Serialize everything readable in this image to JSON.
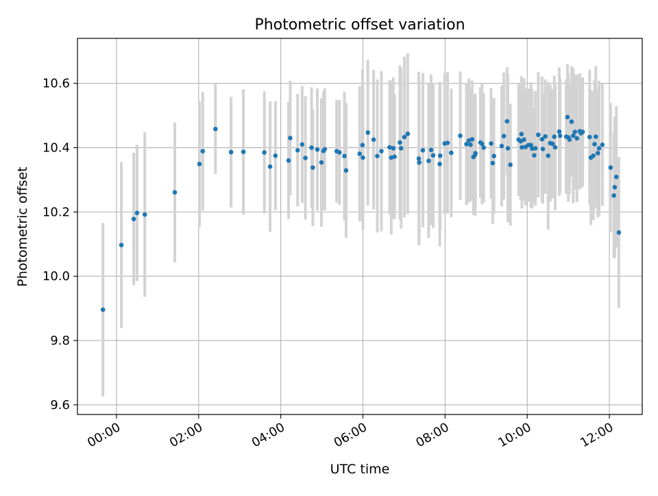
{
  "chart_data": {
    "type": "scatter",
    "title": "Photometric offset variation",
    "xlabel": "UTC time",
    "ylabel": "Photometric offset",
    "x_unit": "hours (UTC)",
    "xlim": [
      -0.95,
      12.8
    ],
    "ylim": [
      9.57,
      10.74
    ],
    "grid": true,
    "x_ticks": [
      0,
      2,
      4,
      6,
      8,
      10,
      12
    ],
    "x_tick_labels": [
      "00:00",
      "02:00",
      "04:00",
      "06:00",
      "08:00",
      "10:00",
      "12:00"
    ],
    "y_ticks": [
      9.6,
      9.8,
      10.0,
      10.2,
      10.4,
      10.6
    ],
    "y_tick_labels": [
      "9.6",
      "9.8",
      "10.0",
      "10.2",
      "10.4",
      "10.6"
    ],
    "colors": {
      "point": "#1f77b4",
      "errorbar": "#d3d3d3",
      "grid": "#b0b0b0",
      "axes": "#000000"
    },
    "series": [
      {
        "x": [
          -0.33,
          0.12,
          0.42,
          0.5,
          0.69,
          1.42,
          2.02,
          2.1,
          2.41,
          2.79,
          3.09,
          3.6,
          3.74,
          3.87,
          4.19,
          4.23,
          4.41,
          4.52,
          4.6,
          4.75,
          4.78,
          4.89,
          4.99,
          5.04,
          5.07,
          5.36,
          5.43,
          5.55,
          5.59,
          5.92,
          5.99,
          6.0,
          6.12,
          6.26,
          6.35,
          6.45,
          6.65,
          6.69,
          6.74,
          6.77,
          6.9,
          6.93,
          7.01,
          7.09,
          7.36,
          7.37,
          7.46,
          7.6,
          7.66,
          7.71,
          7.87,
          7.88,
          7.99,
          8.06,
          8.15,
          8.37,
          8.52,
          8.58,
          8.62,
          8.66,
          8.69,
          8.73,
          8.74,
          8.86,
          8.9,
          8.94,
          9.12,
          9.16,
          9.19,
          9.38,
          9.43,
          9.51,
          9.53,
          9.59,
          9.79,
          9.84,
          9.86,
          9.87,
          9.92,
          9.96,
          10.03,
          10.09,
          10.12,
          10.17,
          10.2,
          10.27,
          10.36,
          10.38,
          10.44,
          10.51,
          10.56,
          10.62,
          10.66,
          10.68,
          10.78,
          10.8,
          10.95,
          10.98,
          11.0,
          11.03,
          11.08,
          11.12,
          11.16,
          11.21,
          11.28,
          11.31,
          11.35,
          11.52,
          11.55,
          11.61,
          11.64,
          11.67,
          11.72,
          11.75,
          11.83,
          12.03,
          12.11,
          12.13,
          12.17,
          12.23
        ],
        "y": [
          9.896,
          10.097,
          10.178,
          10.197,
          10.192,
          10.261,
          10.349,
          10.389,
          10.458,
          10.386,
          10.387,
          10.385,
          10.341,
          10.375,
          10.36,
          10.43,
          10.392,
          10.41,
          10.368,
          10.4,
          10.338,
          10.394,
          10.354,
          10.39,
          10.395,
          10.389,
          10.385,
          10.374,
          10.329,
          10.381,
          10.408,
          10.369,
          10.447,
          10.425,
          10.374,
          10.389,
          10.401,
          10.369,
          10.398,
          10.372,
          10.416,
          10.398,
          10.433,
          10.443,
          10.366,
          10.354,
          10.392,
          10.359,
          10.393,
          10.376,
          10.349,
          10.375,
          10.413,
          10.415,
          10.384,
          10.437,
          10.411,
          10.422,
          10.409,
          10.426,
          10.371,
          10.378,
          10.383,
          10.416,
          10.412,
          10.4,
          10.413,
          10.352,
          10.374,
          10.405,
          10.436,
          10.482,
          10.398,
          10.347,
          10.425,
          10.42,
          10.442,
          10.401,
          10.425,
          10.402,
          10.408,
          10.408,
          10.397,
          10.376,
          10.398,
          10.44,
          10.426,
          10.396,
          10.435,
          10.375,
          10.414,
          10.412,
          10.434,
          10.401,
          10.45,
          10.437,
          10.434,
          10.495,
          10.432,
          10.425,
          10.481,
          10.437,
          10.449,
          10.429,
          10.451,
          10.445,
          10.449,
          10.433,
          10.369,
          10.375,
          10.411,
          10.434,
          10.383,
          10.398,
          10.409,
          10.338,
          10.251,
          10.277,
          10.309,
          10.136
        ],
        "yerr": [
          0.27,
          0.258,
          0.206,
          0.212,
          0.256,
          0.218,
          0.195,
          0.185,
          0.14,
          0.172,
          0.195,
          0.19,
          0.203,
          0.17,
          0.182,
          0.178,
          0.175,
          0.182,
          0.192,
          0.188,
          0.182,
          0.19,
          0.2,
          0.186,
          0.19,
          0.16,
          0.163,
          0.2,
          0.21,
          0.21,
          0.235,
          0.223,
          0.227,
          0.217,
          0.238,
          0.249,
          0.209,
          0.24,
          0.22,
          0.194,
          0.24,
          0.25,
          0.25,
          0.25,
          0.27,
          0.256,
          0.24,
          0.24,
          0.234,
          0.226,
          0.256,
          0.23,
          0.22,
          0.22,
          0.2,
          0.2,
          0.19,
          0.193,
          0.175,
          0.183,
          0.18,
          0.19,
          0.174,
          0.172,
          0.188,
          0.17,
          0.172,
          0.189,
          0.18,
          0.188,
          0.198,
          0.168,
          0.23,
          0.19,
          0.175,
          0.182,
          0.18,
          0.19,
          0.19,
          0.182,
          0.176,
          0.195,
          0.186,
          0.146,
          0.178,
          0.195,
          0.196,
          0.17,
          0.178,
          0.23,
          0.182,
          0.17,
          0.19,
          0.195,
          0.2,
          0.178,
          0.178,
          0.165,
          0.2,
          0.17,
          0.172,
          0.21,
          0.18,
          0.198,
          0.18,
          0.17,
          0.17,
          0.21,
          0.21,
          0.2,
          0.2,
          0.22,
          0.2,
          0.21,
          0.19,
          0.2,
          0.195,
          0.22,
          0.22,
          0.235
        ]
      }
    ]
  }
}
